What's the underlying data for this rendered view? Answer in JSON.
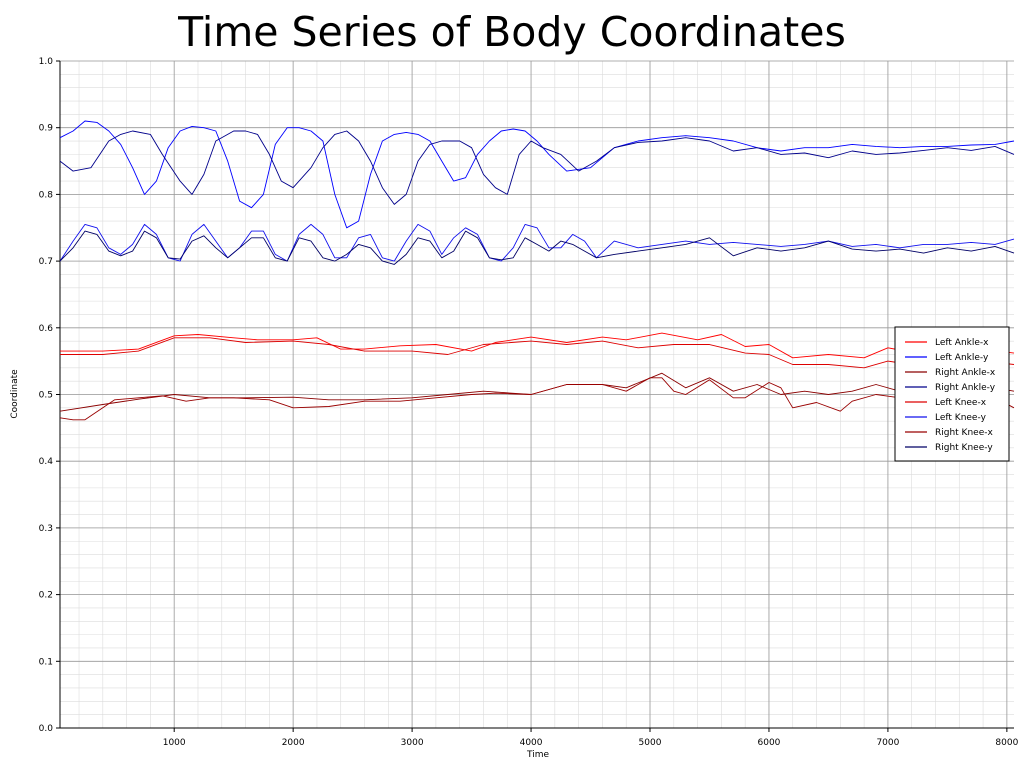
{
  "chart_data": {
    "type": "line",
    "title": "Time Series of Body Coordinates",
    "xlabel": "Time",
    "ylabel": "Coordinate",
    "xlim": [
      40,
      8060
    ],
    "ylim": [
      0.0,
      1.0
    ],
    "xticks": [
      1000,
      2000,
      3000,
      4000,
      5000,
      6000,
      7000,
      8000
    ],
    "yticks": [
      0.0,
      0.1,
      0.2,
      0.3,
      0.4,
      0.5,
      0.6,
      0.7,
      0.8,
      0.9,
      1.0
    ],
    "x_minor_step": 200,
    "y_minor_step": 0.02,
    "grid": true,
    "legend_position": "right",
    "series": [
      {
        "name": "Left Ankle-x",
        "color": "#ff0000",
        "x": [
          40,
          400,
          700,
          1000,
          1200,
          1500,
          1700,
          2000,
          2200,
          2400,
          2600,
          2900,
          3200,
          3500,
          3700,
          4000,
          4300,
          4600,
          4800,
          5100,
          5400,
          5600,
          5800,
          6000,
          6200,
          6500,
          6800,
          7000,
          7300,
          7600,
          7800,
          8060
        ],
        "y": [
          0.565,
          0.565,
          0.568,
          0.588,
          0.59,
          0.585,
          0.582,
          0.582,
          0.585,
          0.568,
          0.568,
          0.573,
          0.575,
          0.565,
          0.578,
          0.586,
          0.578,
          0.586,
          0.582,
          0.592,
          0.582,
          0.59,
          0.572,
          0.575,
          0.555,
          0.56,
          0.555,
          0.57,
          0.56,
          0.562,
          0.568,
          0.562
        ]
      },
      {
        "name": "Left Ankle-y",
        "color": "#0000ff",
        "x": [
          40,
          150,
          250,
          350,
          450,
          550,
          650,
          750,
          850,
          950,
          1050,
          1150,
          1250,
          1350,
          1450,
          1550,
          1650,
          1750,
          1850,
          1950,
          2050,
          2150,
          2250,
          2350,
          2450,
          2550,
          2650,
          2750,
          2850,
          2950,
          3050,
          3150,
          3250,
          3350,
          3450,
          3550,
          3650,
          3750,
          3850,
          3950,
          4050,
          4150,
          4300,
          4500,
          4700,
          4900,
          5100,
          5300,
          5500,
          5700,
          5900,
          6100,
          6300,
          6500,
          6700,
          6900,
          7100,
          7300,
          7500,
          7700,
          7900,
          8060
        ],
        "y": [
          0.885,
          0.895,
          0.91,
          0.908,
          0.895,
          0.875,
          0.84,
          0.8,
          0.82,
          0.87,
          0.895,
          0.902,
          0.9,
          0.895,
          0.85,
          0.79,
          0.78,
          0.8,
          0.875,
          0.9,
          0.9,
          0.895,
          0.88,
          0.8,
          0.75,
          0.76,
          0.83,
          0.88,
          0.89,
          0.893,
          0.89,
          0.88,
          0.85,
          0.82,
          0.825,
          0.86,
          0.88,
          0.895,
          0.898,
          0.895,
          0.88,
          0.86,
          0.835,
          0.84,
          0.87,
          0.88,
          0.885,
          0.888,
          0.885,
          0.88,
          0.87,
          0.865,
          0.87,
          0.87,
          0.875,
          0.872,
          0.87,
          0.872,
          0.872,
          0.874,
          0.875,
          0.88
        ]
      },
      {
        "name": "Right Ankle-x",
        "color": "#8b0000",
        "x": [
          40,
          400,
          700,
          1000,
          1300,
          1600,
          2000,
          2300,
          2600,
          3000,
          3300,
          3600,
          4000,
          4300,
          4600,
          4800,
          5100,
          5300,
          5500,
          5700,
          5900,
          6100,
          6300,
          6500,
          6700,
          6900,
          7100,
          7300,
          7500,
          7700,
          7900,
          8060
        ],
        "y": [
          0.475,
          0.485,
          0.493,
          0.5,
          0.495,
          0.495,
          0.496,
          0.492,
          0.492,
          0.495,
          0.5,
          0.505,
          0.5,
          0.515,
          0.515,
          0.51,
          0.532,
          0.51,
          0.525,
          0.505,
          0.515,
          0.5,
          0.505,
          0.5,
          0.505,
          0.515,
          0.505,
          0.51,
          0.51,
          0.505,
          0.51,
          0.505
        ]
      },
      {
        "name": "Right Ankle-y",
        "color": "#00008b",
        "x": [
          40,
          150,
          300,
          450,
          550,
          650,
          800,
          900,
          1050,
          1150,
          1250,
          1350,
          1500,
          1600,
          1700,
          1800,
          1900,
          2000,
          2150,
          2250,
          2350,
          2450,
          2550,
          2650,
          2750,
          2850,
          2950,
          3050,
          3150,
          3250,
          3400,
          3500,
          3600,
          3700,
          3800,
          3900,
          4000,
          4100,
          4250,
          4400,
          4550,
          4700,
          4900,
          5100,
          5300,
          5500,
          5700,
          5900,
          6100,
          6300,
          6500,
          6700,
          6900,
          7100,
          7300,
          7500,
          7700,
          7900,
          8060
        ],
        "y": [
          0.85,
          0.835,
          0.84,
          0.88,
          0.89,
          0.895,
          0.89,
          0.86,
          0.82,
          0.8,
          0.83,
          0.88,
          0.895,
          0.895,
          0.89,
          0.86,
          0.82,
          0.81,
          0.84,
          0.87,
          0.89,
          0.895,
          0.88,
          0.85,
          0.81,
          0.785,
          0.8,
          0.85,
          0.875,
          0.88,
          0.88,
          0.87,
          0.83,
          0.81,
          0.8,
          0.86,
          0.88,
          0.87,
          0.86,
          0.835,
          0.85,
          0.87,
          0.878,
          0.88,
          0.885,
          0.88,
          0.865,
          0.87,
          0.86,
          0.862,
          0.855,
          0.865,
          0.86,
          0.862,
          0.866,
          0.87,
          0.866,
          0.872,
          0.86
        ]
      },
      {
        "name": "Left Knee-x",
        "color": "#dd0000",
        "x": [
          40,
          400,
          700,
          1000,
          1300,
          1600,
          2000,
          2300,
          2600,
          3000,
          3300,
          3600,
          4000,
          4300,
          4600,
          4900,
          5200,
          5500,
          5800,
          6000,
          6200,
          6500,
          6800,
          7000,
          7300,
          7600,
          7800,
          8060
        ],
        "y": [
          0.56,
          0.56,
          0.565,
          0.585,
          0.585,
          0.578,
          0.58,
          0.575,
          0.565,
          0.565,
          0.56,
          0.575,
          0.58,
          0.575,
          0.58,
          0.57,
          0.575,
          0.575,
          0.562,
          0.56,
          0.545,
          0.545,
          0.54,
          0.55,
          0.542,
          0.545,
          0.55,
          0.545
        ]
      },
      {
        "name": "Left Knee-y",
        "color": "#1010ee",
        "x": [
          40,
          150,
          250,
          350,
          450,
          550,
          650,
          750,
          850,
          950,
          1050,
          1150,
          1250,
          1350,
          1450,
          1550,
          1650,
          1750,
          1850,
          1950,
          2050,
          2150,
          2250,
          2350,
          2450,
          2550,
          2650,
          2750,
          2850,
          2950,
          3050,
          3150,
          3250,
          3350,
          3450,
          3550,
          3650,
          3750,
          3850,
          3950,
          4050,
          4150,
          4250,
          4350,
          4450,
          4550,
          4700,
          4900,
          5100,
          5300,
          5500,
          5700,
          5900,
          6100,
          6300,
          6500,
          6700,
          6900,
          7100,
          7300,
          7500,
          7700,
          7900,
          8060
        ],
        "y": [
          0.7,
          0.73,
          0.755,
          0.75,
          0.72,
          0.71,
          0.725,
          0.755,
          0.74,
          0.705,
          0.7,
          0.74,
          0.755,
          0.73,
          0.705,
          0.72,
          0.745,
          0.745,
          0.71,
          0.7,
          0.74,
          0.755,
          0.74,
          0.705,
          0.705,
          0.735,
          0.74,
          0.705,
          0.7,
          0.73,
          0.755,
          0.745,
          0.71,
          0.735,
          0.75,
          0.74,
          0.705,
          0.7,
          0.72,
          0.755,
          0.75,
          0.72,
          0.72,
          0.74,
          0.73,
          0.705,
          0.73,
          0.72,
          0.725,
          0.73,
          0.725,
          0.728,
          0.725,
          0.722,
          0.725,
          0.73,
          0.722,
          0.725,
          0.72,
          0.725,
          0.725,
          0.728,
          0.725,
          0.733
        ]
      },
      {
        "name": "Right Knee-x",
        "color": "#990000",
        "x": [
          40,
          150,
          250,
          400,
          500,
          700,
          900,
          1100,
          1300,
          1500,
          1800,
          2000,
          2300,
          2600,
          2900,
          3200,
          3500,
          3700,
          4000,
          4300,
          4600,
          4800,
          5000,
          5100,
          5200,
          5300,
          5500,
          5700,
          5800,
          6000,
          6100,
          6200,
          6400,
          6600,
          6700,
          6900,
          7100,
          7300,
          7500,
          7700,
          7900,
          8060
        ],
        "y": [
          0.465,
          0.462,
          0.462,
          0.48,
          0.492,
          0.495,
          0.498,
          0.49,
          0.495,
          0.495,
          0.492,
          0.48,
          0.482,
          0.49,
          0.49,
          0.495,
          0.5,
          0.502,
          0.5,
          0.515,
          0.515,
          0.505,
          0.525,
          0.525,
          0.505,
          0.5,
          0.522,
          0.495,
          0.495,
          0.518,
          0.51,
          0.48,
          0.488,
          0.475,
          0.49,
          0.5,
          0.495,
          0.502,
          0.5,
          0.5,
          0.495,
          0.48
        ]
      },
      {
        "name": "Right Knee-y",
        "color": "#000066",
        "x": [
          40,
          150,
          250,
          350,
          450,
          550,
          650,
          750,
          850,
          950,
          1050,
          1150,
          1250,
          1350,
          1450,
          1550,
          1650,
          1750,
          1850,
          1950,
          2050,
          2150,
          2250,
          2350,
          2450,
          2550,
          2650,
          2750,
          2850,
          2950,
          3050,
          3150,
          3250,
          3350,
          3450,
          3550,
          3650,
          3750,
          3850,
          3950,
          4050,
          4150,
          4250,
          4350,
          4450,
          4550,
          4700,
          4900,
          5100,
          5300,
          5500,
          5700,
          5900,
          6100,
          6300,
          6500,
          6700,
          6900,
          7100,
          7300,
          7500,
          7700,
          7900,
          8060
        ],
        "y": [
          0.7,
          0.72,
          0.745,
          0.74,
          0.715,
          0.708,
          0.715,
          0.745,
          0.735,
          0.705,
          0.703,
          0.73,
          0.738,
          0.72,
          0.705,
          0.72,
          0.735,
          0.735,
          0.705,
          0.7,
          0.735,
          0.73,
          0.705,
          0.7,
          0.71,
          0.725,
          0.72,
          0.7,
          0.695,
          0.71,
          0.735,
          0.73,
          0.705,
          0.715,
          0.745,
          0.735,
          0.705,
          0.702,
          0.705,
          0.735,
          0.725,
          0.715,
          0.73,
          0.725,
          0.715,
          0.705,
          0.71,
          0.715,
          0.72,
          0.725,
          0.735,
          0.708,
          0.72,
          0.715,
          0.72,
          0.73,
          0.718,
          0.715,
          0.718,
          0.712,
          0.72,
          0.715,
          0.722,
          0.712
        ]
      }
    ]
  }
}
